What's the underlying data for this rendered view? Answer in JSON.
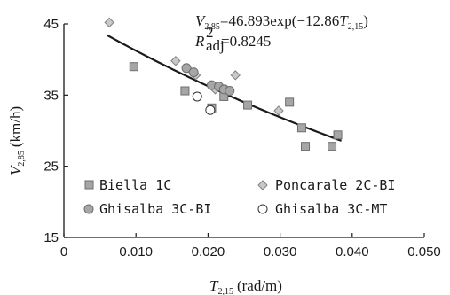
{
  "chart_data": {
    "type": "scatter",
    "title": "",
    "xlabel": {
      "var": "T",
      "sub": "2,15",
      "unit": "(rad/m)"
    },
    "ylabel": {
      "var": "V",
      "sub": "2,85",
      "unit": "(km/h)"
    },
    "xlim": [
      0,
      0.05
    ],
    "ylim": [
      15,
      45
    ],
    "xticks": [
      0,
      0.01,
      0.02,
      0.03,
      0.04,
      0.05
    ],
    "xtick_labels": [
      "0",
      "0.010",
      "0.020",
      "0.030",
      "0.040",
      "0.050"
    ],
    "yticks": [
      15,
      25,
      35,
      45
    ],
    "ytick_labels": [
      "15",
      "25",
      "35",
      "45"
    ],
    "grid": false,
    "legend_position": "lower-center",
    "series": [
      {
        "name": "Biella 1C",
        "marker": "square",
        "fill": "#a6a6a6",
        "stroke": "#6e6e6e",
        "points": [
          [
            0.0097,
            39.0
          ],
          [
            0.0168,
            35.6
          ],
          [
            0.0205,
            33.2
          ],
          [
            0.0222,
            34.8
          ],
          [
            0.0255,
            33.6
          ],
          [
            0.0313,
            34.0
          ],
          [
            0.033,
            30.4
          ],
          [
            0.0335,
            27.8
          ],
          [
            0.0372,
            27.8
          ],
          [
            0.038,
            29.4
          ]
        ]
      },
      {
        "name": "Poncarale 2C-BI",
        "marker": "diamond",
        "fill": "#c9c9c9",
        "stroke": "#808080",
        "points": [
          [
            0.0063,
            45.2
          ],
          [
            0.0155,
            39.8
          ],
          [
            0.0183,
            37.8
          ],
          [
            0.021,
            35.8
          ],
          [
            0.0225,
            35.8
          ],
          [
            0.0238,
            37.8
          ],
          [
            0.0298,
            32.8
          ]
        ]
      },
      {
        "name": "Ghisalba 3C-BI",
        "marker": "circle",
        "fill": "#a6a6a6",
        "stroke": "#6e6e6e",
        "points": [
          [
            0.017,
            38.8
          ],
          [
            0.018,
            38.2
          ],
          [
            0.0205,
            36.4
          ],
          [
            0.0215,
            36.2
          ],
          [
            0.0222,
            35.8
          ],
          [
            0.023,
            35.6
          ]
        ]
      },
      {
        "name": "Ghisalba 3C-MT",
        "marker": "open-circle",
        "fill": "#ffffff",
        "stroke": "#333333",
        "points": [
          [
            0.0185,
            34.8
          ],
          [
            0.0203,
            32.9
          ]
        ]
      }
    ],
    "fit": {
      "a": 46.893,
      "b": -12.86,
      "x_range": [
        0.006,
        0.0385
      ],
      "stroke": "#1a1a1a",
      "equation": {
        "lhs_var": "V",
        "lhs_sub": "2,85",
        "rhs_prefix": "=46.893exp(−12.86",
        "rhs_var": "T",
        "rhs_sub": "2,15",
        "rhs_suffix": ")"
      },
      "r2": {
        "var": "R",
        "sup": "2",
        "sub": "adj",
        "value": "=0.8245"
      }
    }
  }
}
